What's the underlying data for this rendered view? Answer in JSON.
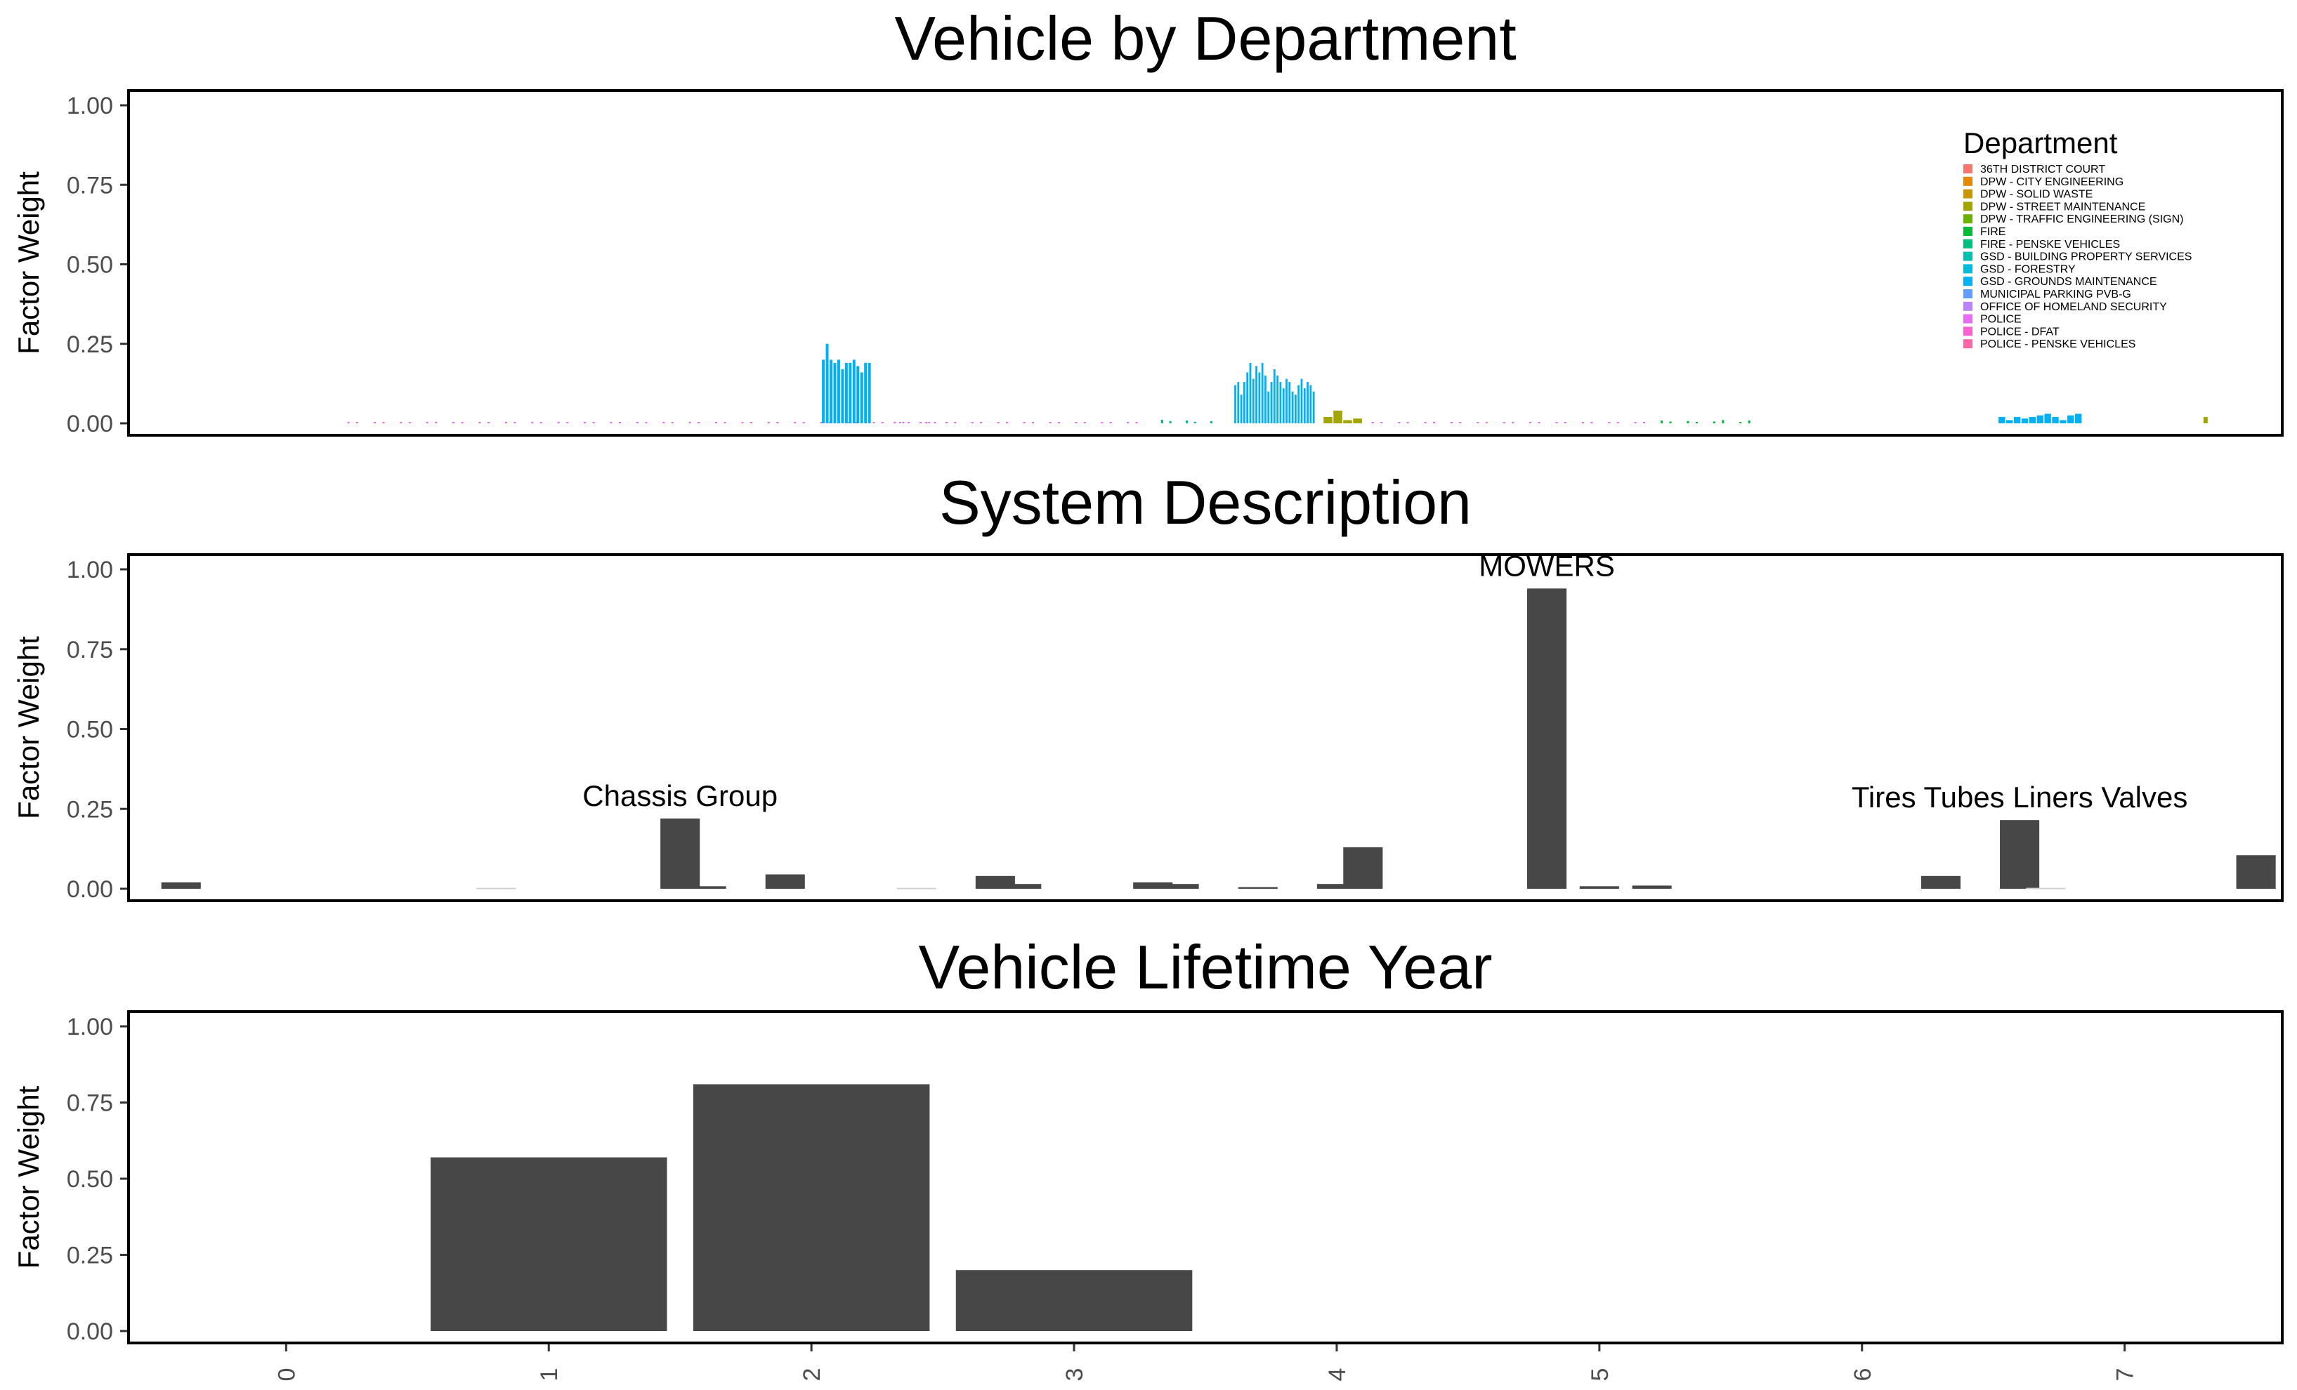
{
  "chart_data": [
    {
      "type": "bar",
      "title": "Vehicle by Department",
      "ylabel": "Factor Weight",
      "xlabel": "",
      "ylim": [
        0,
        1.0
      ],
      "yticks": [
        "0.00",
        "0.25",
        "0.50",
        "0.75",
        "1.00"
      ],
      "grid": false,
      "legend": {
        "title": "Department",
        "placement": "top-right",
        "entries": [
          {
            "name": "36TH DISTRICT COURT",
            "color": "#F8766D"
          },
          {
            "name": "DPW - CITY ENGINEERING",
            "color": "#E58700"
          },
          {
            "name": "DPW - SOLID WASTE",
            "color": "#C99800"
          },
          {
            "name": "DPW - STREET MAINTENANCE",
            "color": "#A3A500"
          },
          {
            "name": "DPW - TRAFFIC ENGINEERING (SIGN)",
            "color": "#6BB100"
          },
          {
            "name": "FIRE",
            "color": "#00BA38"
          },
          {
            "name": "FIRE - PENSKE VEHICLES",
            "color": "#00BF7D"
          },
          {
            "name": "GSD - BUILDING PROPERTY SERVICES",
            "color": "#00C0AF"
          },
          {
            "name": "GSD - FORESTRY",
            "color": "#00BCD8"
          },
          {
            "name": "GSD - GROUNDS MAINTENANCE",
            "color": "#00B0F6"
          },
          {
            "name": "MUNICIPAL PARKING PVB-G",
            "color": "#619CFF"
          },
          {
            "name": "OFFICE OF HOMELAND SECURITY",
            "color": "#B983FF"
          },
          {
            "name": "POLICE",
            "color": "#E76BF3"
          },
          {
            "name": "POLICE - DFAT",
            "color": "#FD61D1"
          },
          {
            "name": "POLICE - PENSKE VEHICLES",
            "color": "#FF67A4"
          }
        ]
      },
      "clusters": [
        {
          "department": "POLICE",
          "x_start": 0.2,
          "x_end": 2.5,
          "values_note": "near zero",
          "value": 0.003
        },
        {
          "department": "GSD - GROUNDS MAINTENANCE",
          "x_start": 2.04,
          "x_end": 2.23,
          "values": [
            0.2,
            0.25,
            0.2,
            0.19,
            0.2,
            0.17,
            0.19,
            0.19,
            0.2,
            0.18,
            0.16,
            0.19,
            0.19
          ]
        },
        {
          "department": "POLICE",
          "x_start": 2.28,
          "x_end": 3.3,
          "values_note": "near zero",
          "value": 0.003
        },
        {
          "department": "FIRE - PENSKE VEHICLES",
          "x_start": 3.3,
          "x_end": 3.55,
          "values_note": "small",
          "value": 0.01
        },
        {
          "department": "GSD - GROUNDS MAINTENANCE",
          "x_start": 3.61,
          "x_end": 3.92,
          "values": [
            0.12,
            0.13,
            0.09,
            0.13,
            0.16,
            0.19,
            0.14,
            0.18,
            0.16,
            0.19,
            0.15,
            0.1,
            0.13,
            0.17,
            0.15,
            0.13,
            0.11,
            0.14,
            0.13,
            0.1,
            0.09,
            0.12,
            0.14,
            0.11,
            0.13,
            0.12,
            0.1
          ]
        },
        {
          "department": "DPW - STREET MAINTENANCE",
          "x_start": 3.95,
          "x_end": 4.1,
          "values": [
            0.02,
            0.04,
            0.01,
            0.015
          ]
        },
        {
          "department": "POLICE",
          "x_start": 4.1,
          "x_end": 5.2,
          "values_note": "near zero",
          "value": 0.003
        },
        {
          "department": "FIRE",
          "x_start": 5.2,
          "x_end": 5.6,
          "values_note": "small",
          "value": 0.008
        },
        {
          "department": "GSD - GROUNDS MAINTENANCE",
          "x_start": 6.52,
          "x_end": 6.84,
          "values": [
            0.02,
            0.01,
            0.02,
            0.015,
            0.02,
            0.025,
            0.03,
            0.02,
            0.01,
            0.025,
            0.03
          ]
        },
        {
          "department": "DPW - STREET MAINTENANCE",
          "x_start": 7.3,
          "x_end": 7.32,
          "values": [
            0.02
          ]
        }
      ]
    },
    {
      "type": "bar",
      "title": "System Description",
      "ylabel": "Factor Weight",
      "xlabel": "",
      "ylim": [
        0,
        1.0
      ],
      "yticks": [
        "0.00",
        "0.25",
        "0.50",
        "0.75",
        "1.00"
      ],
      "grid": false,
      "series": [
        {
          "x": [
            -0.4,
            0.8,
            1.5,
            1.6,
            1.9,
            2.4,
            2.7,
            2.8,
            3.3,
            3.4,
            3.7,
            4.0,
            4.1,
            4.8,
            5.0,
            5.2,
            6.3,
            6.6,
            6.7,
            7.5
          ],
          "values": [
            0.02,
            0.003,
            0.22,
            0.008,
            0.045,
            0.003,
            0.04,
            0.015,
            0.02,
            0.015,
            0.005,
            0.015,
            0.13,
            0.94,
            0.008,
            0.01,
            0.04,
            0.215,
            0.003,
            0.105
          ]
        }
      ],
      "annotations": [
        {
          "text": "Chassis Group",
          "x": 1.5,
          "y": 0.22
        },
        {
          "text": "MOWERS",
          "x": 4.8,
          "y": 0.94
        },
        {
          "text": "Tires Tubes Liners Valves",
          "x": 6.6,
          "y": 0.215
        }
      ]
    },
    {
      "type": "bar",
      "title": "Vehicle Lifetime Year",
      "ylabel": "Factor Weight",
      "xlabel": "",
      "ylim": [
        0,
        1.0
      ],
      "yticks": [
        "0.00",
        "0.25",
        "0.50",
        "0.75",
        "1.00"
      ],
      "grid": false,
      "categories": [
        "0",
        "1",
        "2",
        "3",
        "4",
        "5",
        "6",
        "7"
      ],
      "values": [
        0,
        0.57,
        0.81,
        0.2,
        0,
        0,
        0,
        0
      ]
    }
  ],
  "colors": {
    "bar_dark": "#474747",
    "panel_border": "#000000",
    "tick_label": "#4d4d4d"
  }
}
